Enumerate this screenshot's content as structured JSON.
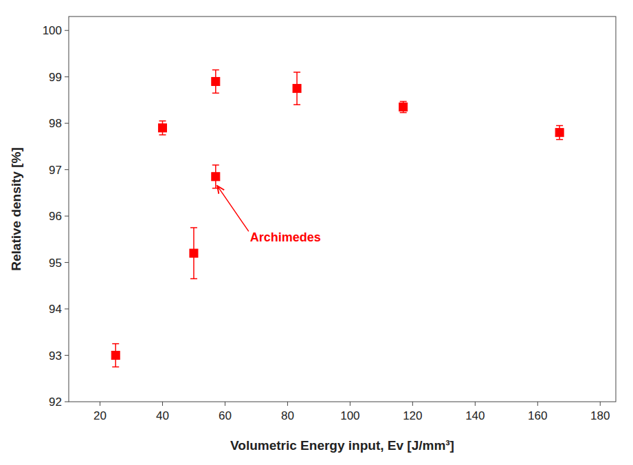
{
  "chart_data": {
    "type": "scatter",
    "xlabel": "Volumetric Energy input, Ev [J/mm³]",
    "ylabel": "Relative density [%]",
    "color": "#FF0000",
    "marker": "square",
    "grid": false,
    "series": [
      {
        "x": [
          25,
          40,
          57,
          83,
          117,
          167
        ],
        "values": [
          93.0,
          97.9,
          98.9,
          98.75,
          98.35,
          97.8
        ],
        "errors": [
          0.25,
          0.15,
          0.25,
          0.35,
          0.12,
          0.15
        ]
      },
      {
        "x": [
          50
        ],
        "values": [
          95.2
        ],
        "errors": [
          0.55
        ]
      },
      {
        "x": [
          57
        ],
        "values": [
          96.85
        ],
        "errors": [
          0.25
        ]
      }
    ],
    "annotations": [
      {
        "text": "Archimedes",
        "x": 57.0,
        "y": 96.7,
        "text_x": 68,
        "text_y": 95.7
      }
    ],
    "xlim": [
      10,
      185
    ],
    "ylim": [
      92,
      100.3
    ],
    "xticks": [
      20,
      40,
      60,
      80,
      100,
      120,
      140,
      160,
      180
    ],
    "yticks": [
      92,
      93,
      94,
      95,
      96,
      97,
      98,
      99,
      100
    ]
  }
}
